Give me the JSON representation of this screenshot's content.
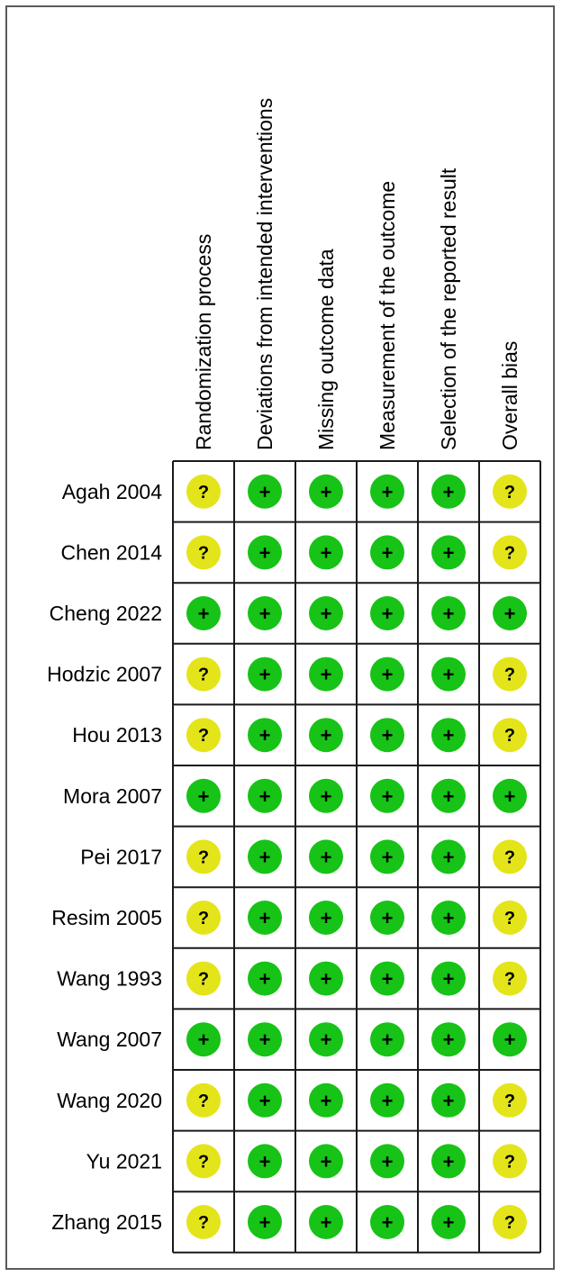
{
  "chart_data": {
    "type": "table",
    "columns": [
      "Randomization process",
      "Deviations from intended interventions",
      "Missing outcome data",
      "Measurement of the outcome",
      "Selection of the reported result",
      "Overall bias"
    ],
    "rows": [
      {
        "study": "Agah 2004",
        "judgements": [
          "?",
          "+",
          "+",
          "+",
          "+",
          "?"
        ]
      },
      {
        "study": "Chen 2014",
        "judgements": [
          "?",
          "+",
          "+",
          "+",
          "+",
          "?"
        ]
      },
      {
        "study": "Cheng 2022",
        "judgements": [
          "+",
          "+",
          "+",
          "+",
          "+",
          "+"
        ]
      },
      {
        "study": "Hodzic 2007",
        "judgements": [
          "?",
          "+",
          "+",
          "+",
          "+",
          "?"
        ]
      },
      {
        "study": "Hou 2013",
        "judgements": [
          "?",
          "+",
          "+",
          "+",
          "+",
          "?"
        ]
      },
      {
        "study": "Mora 2007",
        "judgements": [
          "+",
          "+",
          "+",
          "+",
          "+",
          "+"
        ]
      },
      {
        "study": "Pei 2017",
        "judgements": [
          "?",
          "+",
          "+",
          "+",
          "+",
          "?"
        ]
      },
      {
        "study": "Resim 2005",
        "judgements": [
          "?",
          "+",
          "+",
          "+",
          "+",
          "?"
        ]
      },
      {
        "study": "Wang 1993",
        "judgements": [
          "?",
          "+",
          "+",
          "+",
          "+",
          "?"
        ]
      },
      {
        "study": "Wang 2007",
        "judgements": [
          "+",
          "+",
          "+",
          "+",
          "+",
          "+"
        ]
      },
      {
        "study": "Wang 2020",
        "judgements": [
          "?",
          "+",
          "+",
          "+",
          "+",
          "?"
        ]
      },
      {
        "study": "Yu 2021",
        "judgements": [
          "?",
          "+",
          "+",
          "+",
          "+",
          "?"
        ]
      },
      {
        "study": "Zhang 2015",
        "judgements": [
          "?",
          "+",
          "+",
          "+",
          "+",
          "?"
        ]
      }
    ],
    "symbol_colors": {
      "+": "#16c316",
      "?": "#e4e41a"
    },
    "grid_color": "#1a1a1a"
  }
}
